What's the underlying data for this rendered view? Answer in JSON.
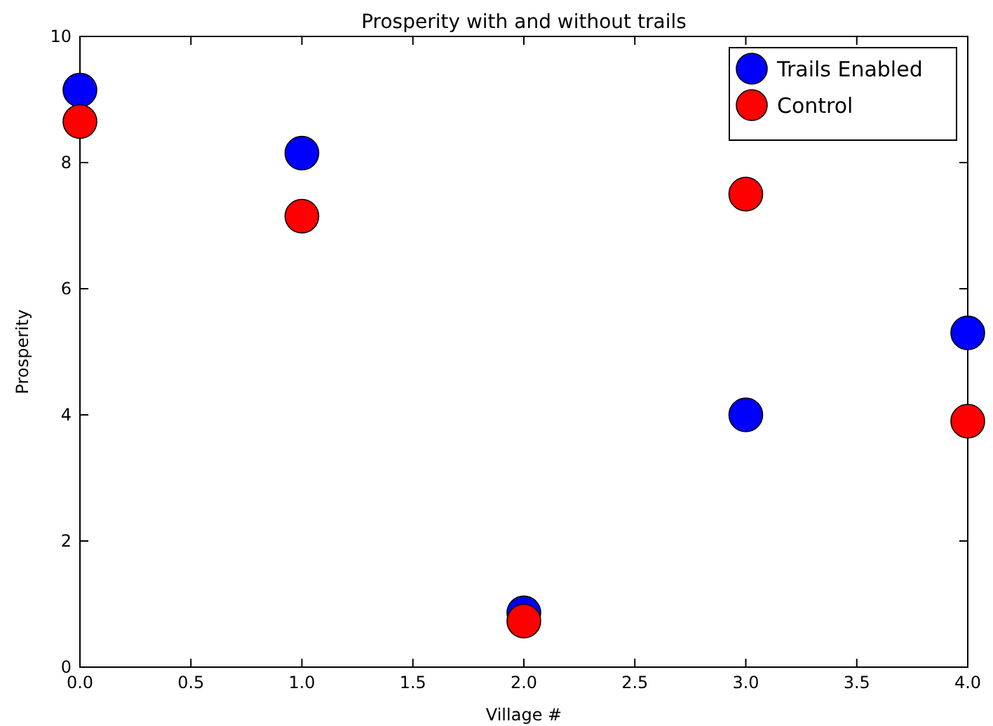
{
  "chart_data": {
    "type": "scatter",
    "title": "Prosperity with and without trails",
    "xlabel": "Village #",
    "ylabel": "Prosperity",
    "x": [
      0,
      1,
      2,
      3,
      4
    ],
    "series": [
      {
        "name": "Trails Enabled",
        "color": "#0000ff",
        "values": [
          9.15,
          8.15,
          0.86,
          4.0,
          5.3
        ]
      },
      {
        "name": "Control",
        "color": "#ff0000",
        "values": [
          8.65,
          7.15,
          0.73,
          7.5,
          3.9
        ]
      }
    ],
    "xlim": [
      0,
      4
    ],
    "ylim": [
      0,
      10
    ],
    "xticks": [
      {
        "value": 0,
        "label": "0.0"
      },
      {
        "value": 0.5,
        "label": "0.5"
      },
      {
        "value": 1,
        "label": "1.0"
      },
      {
        "value": 1.5,
        "label": "1.5"
      },
      {
        "value": 2,
        "label": "2.0"
      },
      {
        "value": 2.5,
        "label": "2.5"
      },
      {
        "value": 3,
        "label": "3.0"
      },
      {
        "value": 3.5,
        "label": "3.5"
      },
      {
        "value": 4,
        "label": "4.0"
      }
    ],
    "yticks": [
      0,
      2,
      4,
      6,
      8,
      10
    ],
    "marker": "circle",
    "legend": "top right",
    "grid": false
  }
}
